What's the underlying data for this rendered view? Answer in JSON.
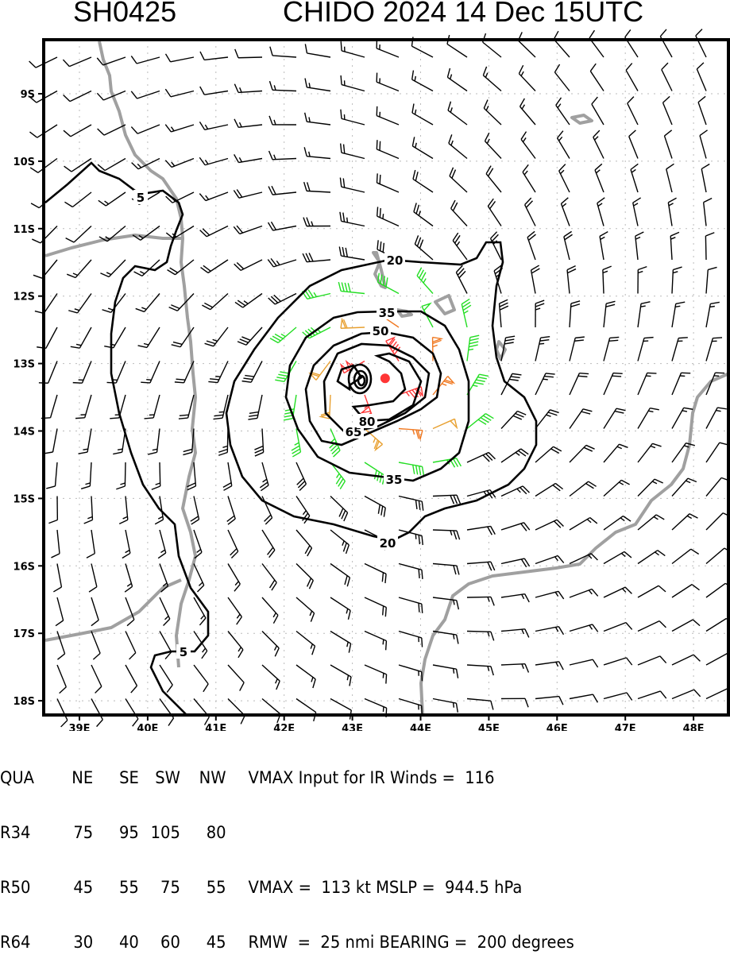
{
  "header": {
    "storm_id": "SH0425",
    "title": "CHIDO 2024 14 Dec 15UTC"
  },
  "map": {
    "lon_labels": [
      "39E",
      "40E",
      "41E",
      "42E",
      "43E",
      "44E",
      "45E",
      "46E",
      "47E",
      "48E"
    ],
    "lat_labels": [
      "9S",
      "10S",
      "11S",
      "12S",
      "13S",
      "14S",
      "15S",
      "16S",
      "17S",
      "18S"
    ],
    "contour_labels": {
      "c5a": "5",
      "c5b": "5",
      "c20a": "20",
      "c20b": "20",
      "c35a": "35",
      "c35b": "35",
      "c50": "50",
      "c65": "65",
      "c80": "80"
    },
    "contour_levels_kt": [
      5,
      20,
      35,
      50,
      65,
      80
    ],
    "center": {
      "lon": 43.48,
      "lat": -13.22
    },
    "colors": {
      "calm": "#000000",
      "gale": "#22dd22",
      "storm": "#e8a030",
      "hurricane": "#f07820",
      "strong": "#ff3535",
      "coast": "#a0a0a0",
      "center": "#ff3535"
    }
  },
  "table": {
    "headers": [
      "QUA",
      "NE",
      "SE",
      "SW",
      "NW"
    ],
    "rows": [
      {
        "label": "R34",
        "values": [
          "75",
          "95",
          "105",
          "80"
        ]
      },
      {
        "label": "R50",
        "values": [
          "45",
          "55",
          "75",
          "55"
        ]
      },
      {
        "label": "R64",
        "values": [
          "30",
          "40",
          "60",
          "45"
        ]
      }
    ],
    "vmax_input_text": "VMAX Input for IR Winds =  116",
    "vmax_text": "VMAX =  113 kt MSLP =  944.5 hPa",
    "rmw_text": "RMW  =  25 nmi BEARING =  200 degrees"
  },
  "storm": {
    "vmax_kt": 113,
    "rmw_nmi": 25,
    "mslp_hpa": 944.5,
    "bearing_deg": 200,
    "vmax_ir_input": 116
  }
}
